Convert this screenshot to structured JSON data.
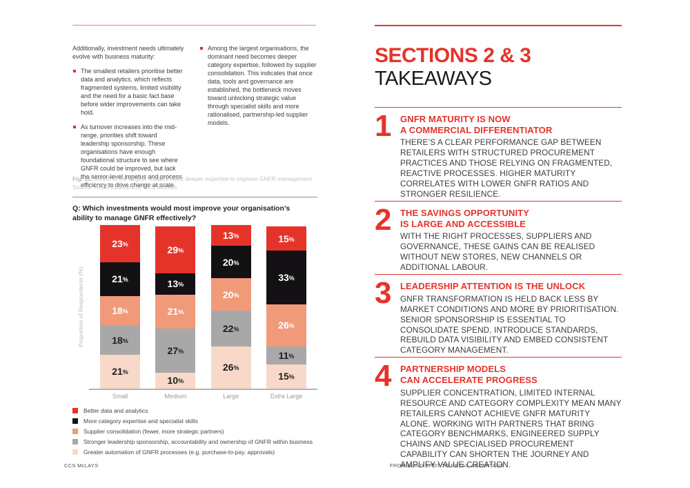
{
  "page": {
    "footer_left": "CCS McLAYS",
    "footer_right": "FROM BLIND SPOT TO RETAIL ADVANTAGE",
    "accent_red": "#e6332a"
  },
  "left_column": {
    "intro": "Additionally, investment needs ultimately evolve with business maturity:",
    "bullets": [
      {
        "text": "The smallest retailers prioritise better data and analytics, which reflects fragmented systems, limited visibility and the need for a basic fact base before wider improvements can take hold."
      },
      {
        "text": "As turnover increases into the mid-range, priorities shift toward leadership sponsorship. These organisations have enough foundational structure to see where GNFR could be improved, but lack the senior-level impetus and process efficiency to drive change at scale."
      },
      {
        "text": "Among the largest organisations, the dominant need becomes deeper category expertise, followed by supplier consolidation. This indicates that once data, tools and governance are established, the bottleneck moves toward unlocking strategic value through specialist skills and more rationalised, partnership-led supplier models."
      }
    ],
    "fig_label": "Fig. 11:",
    "fig_caption": " A third of the largest retailers need deeper expertise to improve GNFR management.",
    "fig_source": "Source: Retail Economics, CCS McLays",
    "question": "Q: Which investments would most improve your organisation’s ability to manage GNFR effectively?"
  },
  "chart_data": {
    "type": "bar",
    "stacked": true,
    "title": "Q: Which investments would most improve your organisation’s ability to manage GNFR effectively?",
    "xlabel": "",
    "ylabel": "Proportion of Respondents (%)",
    "ylim": [
      0,
      101
    ],
    "grid": false,
    "legend_position": "bottom-left",
    "value_suffix": "%",
    "categories": [
      "Small",
      "Medium",
      "Large",
      "Extra Large"
    ],
    "series": [
      {
        "name": "Better data and analytics",
        "color": "#e6332a",
        "label_color": "#ffffff",
        "values": [
          23,
          29,
          13,
          15
        ]
      },
      {
        "name": "More category expertise and specialist skills",
        "color": "#141114",
        "label_color": "#ffffff",
        "values": [
          21,
          13,
          20,
          33
        ]
      },
      {
        "name": "Supplier consolidation (fewer, more strategic partners)",
        "color": "#f09a7a",
        "label_color": "#ffffff",
        "values": [
          18,
          21,
          20,
          26
        ]
      },
      {
        "name": "Stronger leadership sponsorship, accountability and ownership of GNFR within business",
        "color": "#a8a8a8",
        "label_color": "#1c1c1c",
        "values": [
          18,
          27,
          22,
          11
        ]
      },
      {
        "name": "Greater automation of GNFR processes (e.g. purchase-to-pay, approvals)",
        "color": "#f8d8c9",
        "label_color": "#1c1c1c",
        "values": [
          21,
          10,
          26,
          15
        ]
      }
    ]
  },
  "right_column": {
    "title_primary": "SECTIONS 2 & 3",
    "title_secondary": "TAKEAWAYS",
    "takeaways": [
      {
        "num": "1",
        "title": "GNFR MATURITY IS NOW\nA COMMERCIAL DIFFERENTIATOR",
        "body": "THERE’S A CLEAR PERFORMANCE GAP BETWEEN RETAILERS WITH STRUCTURED PROCUREMENT PRACTICES AND THOSE RELYING ON FRAGMENTED, REACTIVE PROCESSES. HIGHER MATURITY CORRELATES WITH LOWER GNFR RATIOS AND STRONGER RESILIENCE."
      },
      {
        "num": "2",
        "title": "THE SAVINGS OPPORTUNITY\nIS LARGE AND ACCESSIBLE",
        "body": "WITH THE RIGHT PROCESSES, SUPPLIERS AND GOVERNANCE, THESE GAINS CAN BE REALISED WITHOUT NEW STORES, NEW CHANNELS OR ADDITIONAL LABOUR."
      },
      {
        "num": "3",
        "title": "LEADERSHIP ATTENTION IS THE UNLOCK",
        "body": "GNFR TRANSFORMATION IS HELD BACK LESS BY MARKET CONDITIONS AND MORE BY PRIORITISATION. SENIOR SPONSORSHIP IS ESSENTIAL TO CONSOLIDATE SPEND, INTRODUCE STANDARDS, REBUILD DATA VISIBILITY AND EMBED CONSISTENT CATEGORY MANAGEMENT."
      },
      {
        "num": "4",
        "title": "PARTNERSHIP MODELS\nCAN ACCELERATE PROGRESS",
        "body": "SUPPLIER CONCENTRATION, LIMITED INTERNAL RESOURCE AND CATEGORY COMPLEXITY MEAN MANY RETAILERS CANNOT ACHIEVE GNFR MATURITY ALONE. WORKING WITH PARTNERS THAT BRING CATEGORY BENCHMARKS, ENGINEERED SUPPLY CHAINS AND SPECIALISED PROCUREMENT CAPABILITY CAN SHORTEN THE JOURNEY AND AMPLIFY VALUE CREATION."
      }
    ]
  }
}
